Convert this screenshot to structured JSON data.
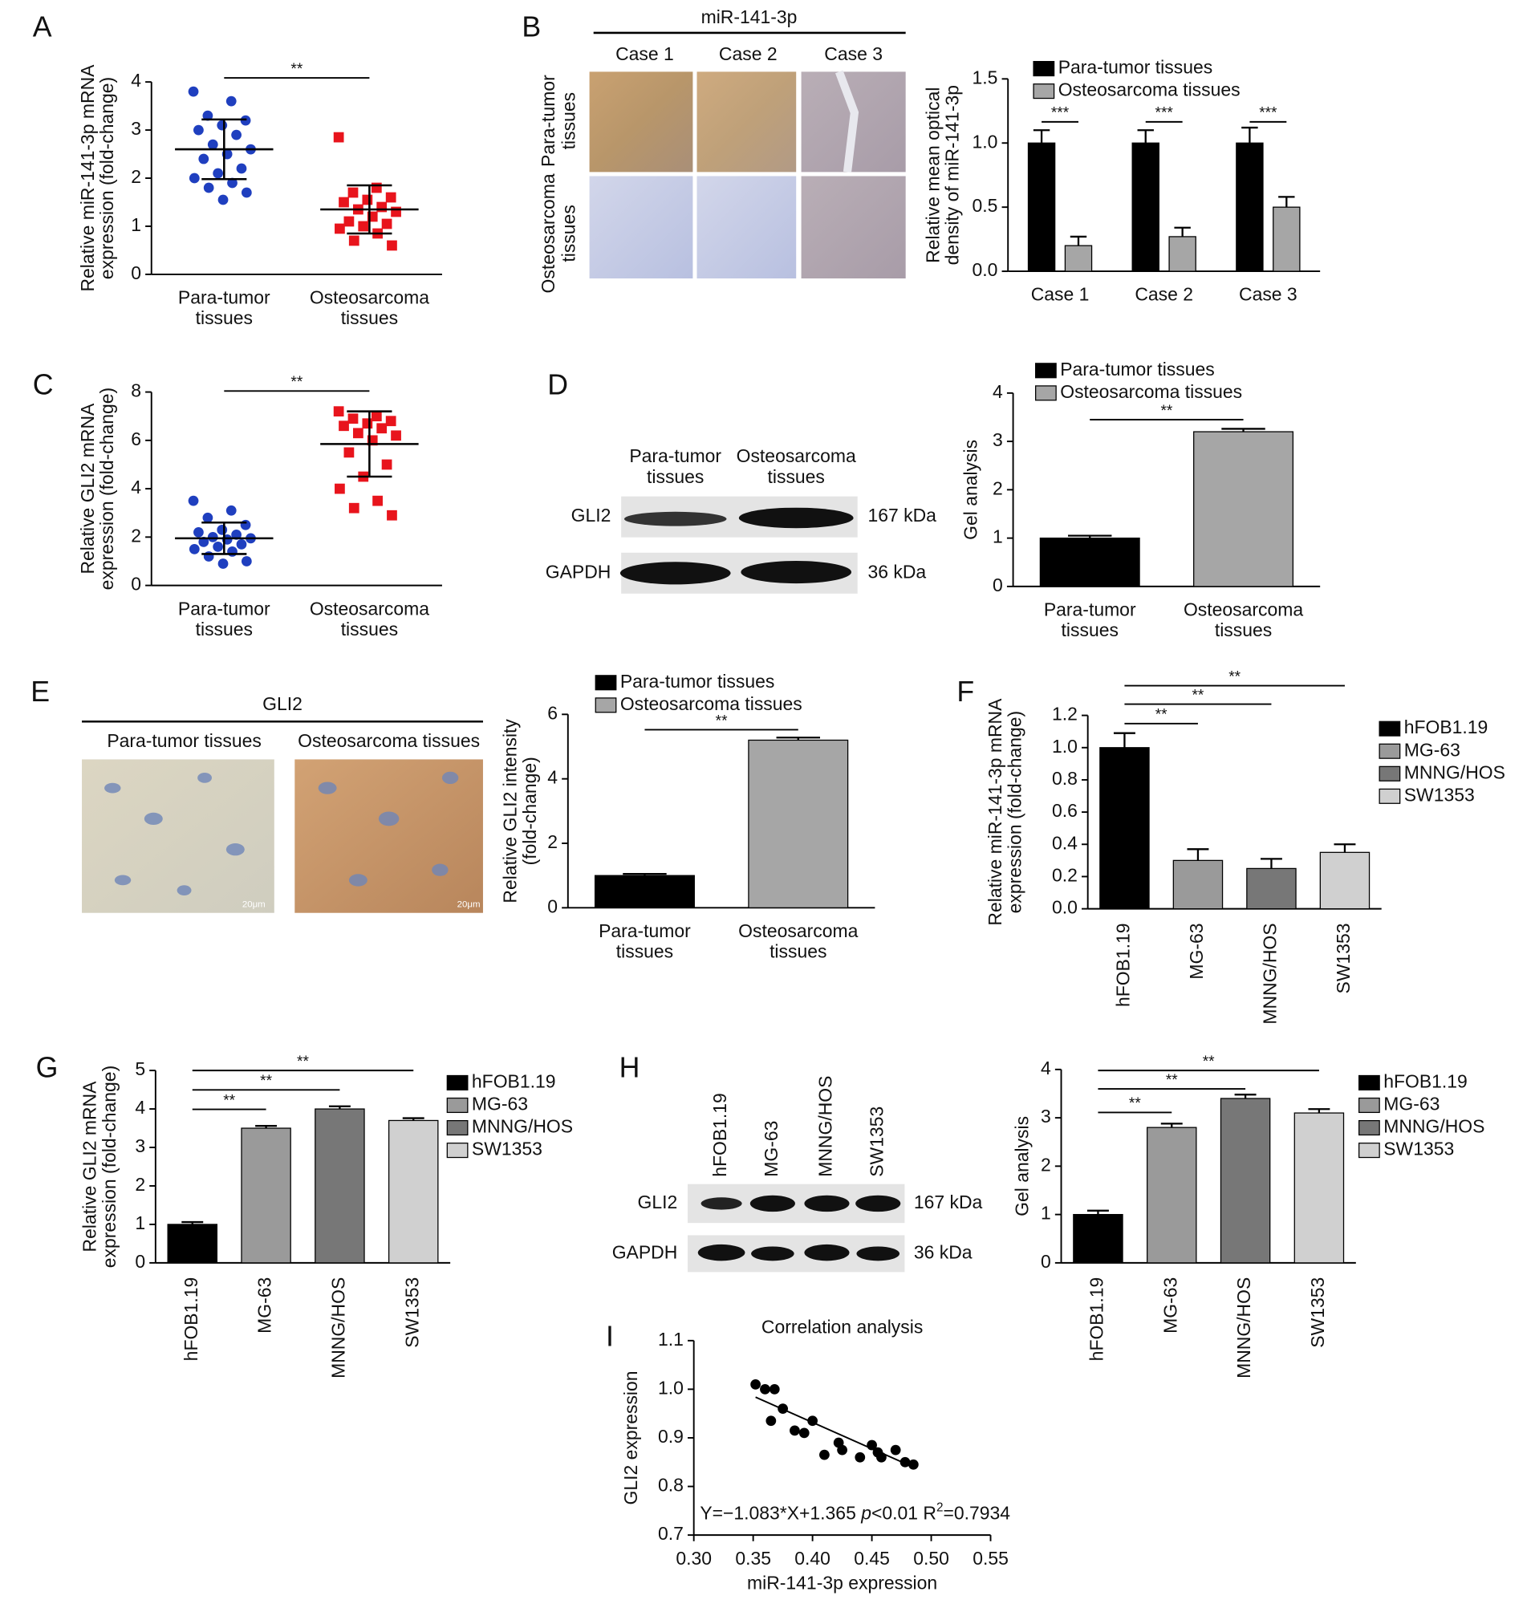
{
  "labels": [
    "A",
    "B",
    "C",
    "D",
    "E",
    "F",
    "G",
    "H",
    "I"
  ],
  "images": {
    "B": {
      "title": "miR-141-3p",
      "columns": [
        "Case 1",
        "Case 2",
        "Case 3"
      ],
      "rows": [
        [
          "Para-tumor",
          "tissues"
        ],
        [
          "Osteosarcoma",
          "tissues"
        ]
      ]
    },
    "D": {
      "columns": [
        [
          "Para-tumor",
          "tissues"
        ],
        [
          "Osteosarcoma",
          "tissues"
        ]
      ],
      "rows": [
        "GLI2",
        "GAPDH"
      ],
      "sizes": [
        "167 kDa",
        "36 kDa"
      ]
    },
    "E": {
      "title": "GLI2",
      "columns": [
        "Para-tumor tissues",
        "Osteosarcoma tissues"
      ],
      "scale_bars": [
        "20μm",
        "20μm"
      ]
    },
    "H": {
      "columns": [
        "hFOB1.19",
        "MG-63",
        "MNNG/HOS",
        "SW1353"
      ],
      "rows": [
        "GLI2",
        "GAPDH"
      ],
      "sizes": [
        "167 kDa",
        "36 kDa"
      ]
    }
  },
  "chart_data": [
    {
      "type": "strip",
      "ylabel": [
        "Relative miR-141-3p mRNA",
        "expression (fold-change)"
      ],
      "categories": [
        [
          "Para-tumor",
          "tissues"
        ],
        [
          "Osteosarcoma",
          "tissues"
        ]
      ],
      "series": [
        {
          "color": "#1f3fbf",
          "values": [
            3.8,
            3.6,
            3.3,
            3.2,
            3.1,
            3.0,
            2.9,
            2.7,
            2.6,
            2.5,
            2.4,
            2.2,
            2.1,
            2.0,
            1.9,
            1.8,
            1.7,
            1.55
          ],
          "mean": 2.6,
          "sd": 0.62
        },
        {
          "color": "#e8141c",
          "values": [
            2.85,
            1.8,
            1.7,
            1.6,
            1.55,
            1.5,
            1.4,
            1.35,
            1.3,
            1.2,
            1.1,
            1.05,
            1.0,
            0.95,
            0.85,
            0.7,
            0.6
          ],
          "mean": 1.35,
          "sd": 0.5
        }
      ],
      "ylim": [
        0,
        4
      ],
      "yticks": [
        0,
        1,
        2,
        3,
        4
      ],
      "significance": [
        "**"
      ]
    },
    {
      "type": "grouped_bar",
      "ylabel": [
        "Relative mean optical",
        "density of miR-141-3p"
      ],
      "categories": [
        "Case 1",
        "Case 2",
        "Case 3"
      ],
      "series": [
        {
          "name": "Para-tumor tissues",
          "color": "#000000",
          "values": [
            1.0,
            1.0,
            1.0
          ],
          "errors": [
            0.1,
            0.1,
            0.12
          ]
        },
        {
          "name": "Osteosarcoma tissues",
          "color": "#a6a6a6",
          "values": [
            0.2,
            0.27,
            0.5
          ],
          "errors": [
            0.07,
            0.07,
            0.08
          ]
        }
      ],
      "ylim": [
        0,
        1.5
      ],
      "yticks": [
        {
          "value": 0,
          "label": "0.0"
        },
        0.5,
        {
          "value": 1,
          "label": "1.0"
        },
        1.5
      ],
      "significance": [
        "***",
        "***",
        "***"
      ]
    },
    {
      "type": "strip",
      "ylabel": [
        "Relative GLI2 mRNA",
        "expression (fold-change)"
      ],
      "categories": [
        [
          "Para-tumor",
          "tissues"
        ],
        [
          "Osteosarcoma",
          "tissues"
        ]
      ],
      "series": [
        {
          "color": "#1f3fbf",
          "values": [
            3.5,
            3.1,
            2.8,
            2.5,
            2.3,
            2.2,
            2.1,
            2.0,
            1.95,
            1.9,
            1.8,
            1.7,
            1.6,
            1.5,
            1.4,
            1.2,
            1.0,
            0.9
          ],
          "mean": 1.95,
          "sd": 0.65
        },
        {
          "color": "#e8141c",
          "values": [
            7.2,
            7.0,
            6.9,
            6.8,
            6.7,
            6.6,
            6.5,
            6.3,
            6.2,
            6.0,
            5.5,
            5.0,
            4.5,
            4.0,
            3.5,
            3.2,
            2.9
          ],
          "mean": 5.85,
          "sd": 1.35
        }
      ],
      "ylim": [
        0,
        8
      ],
      "yticks": [
        0,
        2,
        4,
        6,
        8
      ],
      "significance": [
        "**"
      ]
    },
    {
      "type": "bar",
      "ylabel": [
        "Gel analysis"
      ],
      "categories": [
        [
          "Para-tumor",
          "tissues"
        ],
        [
          "Osteosarcoma",
          "tissues"
        ]
      ],
      "legend": [
        "Para-tumor tissues",
        "Osteosarcoma tissues"
      ],
      "values": [
        1.0,
        3.2
      ],
      "errors": [
        0.05,
        0.06
      ],
      "colors": [
        "#000000",
        "#a6a6a6"
      ],
      "ylim": [
        0,
        4
      ],
      "yticks": [
        0,
        1,
        2,
        3,
        4
      ],
      "significance": [
        "**"
      ]
    },
    {
      "type": "bar",
      "ylabel": [
        "Relative GLI2 intensity",
        "(fold-change)"
      ],
      "categories": [
        [
          "Para-tumor",
          "tissues"
        ],
        [
          "Osteosarcoma",
          "tissues"
        ]
      ],
      "legend": [
        "Para-tumor tissues",
        "Osteosarcoma tissues"
      ],
      "values": [
        1.0,
        5.2
      ],
      "errors": [
        0.05,
        0.08
      ],
      "colors": [
        "#000000",
        "#a6a6a6"
      ],
      "ylim": [
        0,
        6
      ],
      "yticks": [
        0,
        2,
        4,
        6
      ],
      "significance": [
        "**"
      ]
    },
    {
      "type": "bar",
      "ylabel": [
        "Relative miR-141-3p mRNA",
        "expression (fold-change)"
      ],
      "categories": [
        "hFOB1.19",
        "MG-63",
        "MNNG/HOS",
        "SW1353"
      ],
      "values": [
        1.0,
        0.3,
        0.25,
        0.35
      ],
      "errors": [
        0.09,
        0.07,
        0.06,
        0.05
      ],
      "colors": [
        "#000000",
        "#9a9a9a",
        "#777777",
        "#d0d0d0"
      ],
      "ylim": [
        0,
        1.2
      ],
      "yticks": [
        {
          "value": 0,
          "label": "0.0"
        },
        0.2,
        0.4,
        0.6,
        0.8,
        {
          "value": 1,
          "label": "1.0"
        },
        1.2
      ],
      "significance": [
        "**",
        "**",
        "**"
      ]
    },
    {
      "type": "bar",
      "ylabel": [
        "Relative GLI2 mRNA",
        "expression (fold-change)"
      ],
      "categories": [
        "hFOB1.19",
        "MG-63",
        "MNNG/HOS",
        "SW1353"
      ],
      "values": [
        1.0,
        3.5,
        4.0,
        3.7
      ],
      "errors": [
        0.06,
        0.06,
        0.07,
        0.06
      ],
      "colors": [
        "#000000",
        "#9a9a9a",
        "#777777",
        "#d0d0d0"
      ],
      "ylim": [
        0,
        5
      ],
      "yticks": [
        0,
        1,
        2,
        3,
        4,
        5
      ],
      "significance": [
        "**",
        "**",
        "**"
      ]
    },
    {
      "type": "bar",
      "ylabel": [
        "Gel analysis"
      ],
      "categories": [
        "hFOB1.19",
        "MG-63",
        "MNNG/HOS",
        "SW1353"
      ],
      "values": [
        1.0,
        2.8,
        3.4,
        3.1
      ],
      "errors": [
        0.08,
        0.08,
        0.08,
        0.08
      ],
      "colors": [
        "#000000",
        "#9a9a9a",
        "#777777",
        "#d0d0d0"
      ],
      "ylim": [
        0,
        4
      ],
      "yticks": [
        0,
        1,
        2,
        3,
        4
      ],
      "significance": [
        "**",
        "**",
        "**"
      ]
    },
    {
      "type": "scatter",
      "title": "Correlation analysis",
      "xlabel": "miR-141-3p expression",
      "ylabel": [
        "GLI2 expression"
      ],
      "x": [
        0.352,
        0.36,
        0.368,
        0.365,
        0.375,
        0.385,
        0.393,
        0.4,
        0.41,
        0.422,
        0.425,
        0.44,
        0.45,
        0.455,
        0.458,
        0.47,
        0.478,
        0.485
      ],
      "values": [
        1.01,
        1.0,
        1.0,
        0.935,
        0.96,
        0.915,
        0.91,
        0.935,
        0.865,
        0.89,
        0.875,
        0.86,
        0.885,
        0.87,
        0.86,
        0.875,
        0.85,
        0.845
      ],
      "color": "#000000",
      "fit": {
        "slope": -1.083,
        "intercept": 1.365
      },
      "annotation": {
        "equation": "Y=−1.083*X+1.365 ",
        "p": "p",
        "p_value": "<0.01 ",
        "r2_label": "R",
        "r2_exp": "2",
        "r2_value": "=0.7934"
      },
      "xlim": [
        0.3,
        0.55
      ],
      "xticks": [
        {
          "value": 0.3,
          "label": "0.30"
        },
        0.35,
        {
          "value": 0.4,
          "label": "0.40"
        },
        0.45,
        {
          "value": 0.5,
          "label": "0.50"
        },
        0.55
      ],
      "ylim": [
        0.7,
        1.1
      ],
      "yticks": [
        0.7,
        0.8,
        0.9,
        {
          "value": 1,
          "label": "1.0"
        },
        1.1
      ]
    }
  ]
}
